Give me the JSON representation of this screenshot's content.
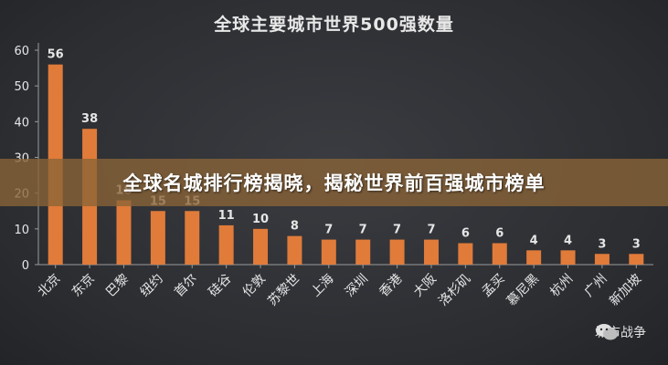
{
  "banner": {
    "text": "全球名城排行榜揭晓，揭秘世界前百强城市榜单"
  },
  "watermark": {
    "icon": "wechat-icon",
    "text": "城市战争"
  },
  "colors": {
    "bar": "#e07b3a",
    "axis": "#9a9a9a",
    "text": "#e6e6e6",
    "background": "#2b2d31"
  },
  "chart_data": {
    "type": "bar",
    "title": "全球主要城市世界500强数量",
    "xlabel": "",
    "ylabel": "",
    "ylim": [
      0,
      60
    ],
    "yticks": [
      0,
      10,
      20,
      30,
      40,
      50,
      60
    ],
    "grid": false,
    "categories": [
      "北京",
      "东京",
      "巴黎",
      "纽约",
      "首尔",
      "硅谷",
      "伦敦",
      "苏黎世",
      "上海",
      "深圳",
      "香港",
      "大阪",
      "洛杉矶",
      "孟买",
      "慕尼黑",
      "杭州",
      "广州",
      "新加坡"
    ],
    "values": [
      56,
      38,
      18,
      15,
      15,
      11,
      10,
      8,
      7,
      7,
      7,
      7,
      6,
      6,
      4,
      4,
      3,
      3
    ]
  }
}
